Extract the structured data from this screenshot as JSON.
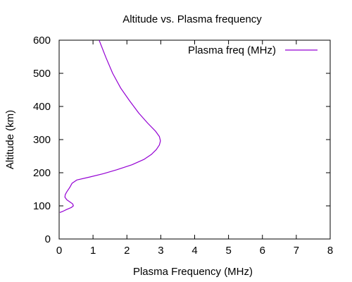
{
  "chart_data": {
    "type": "line",
    "title": "Altitude vs. Plasma frequency",
    "xlabel": "Plasma Frequency (MHz)",
    "ylabel": "Altitude (km)",
    "xlim": [
      0,
      8
    ],
    "ylim": [
      0,
      600
    ],
    "xticks": [
      0,
      1,
      2,
      3,
      4,
      5,
      6,
      7,
      8
    ],
    "yticks": [
      0,
      100,
      200,
      300,
      400,
      500,
      600
    ],
    "grid": false,
    "legend_position": "top-right",
    "series": [
      {
        "name": "Plasma freq (MHz)",
        "color": "#9400d3",
        "points": [
          [
            0.02,
            80
          ],
          [
            0.12,
            84
          ],
          [
            0.22,
            89
          ],
          [
            0.36,
            95
          ],
          [
            0.42,
            100
          ],
          [
            0.4,
            106
          ],
          [
            0.33,
            111
          ],
          [
            0.23,
            118
          ],
          [
            0.17,
            126
          ],
          [
            0.18,
            134
          ],
          [
            0.23,
            143
          ],
          [
            0.31,
            155
          ],
          [
            0.38,
            168
          ],
          [
            0.52,
            178
          ],
          [
            0.9,
            187
          ],
          [
            1.3,
            197
          ],
          [
            1.7,
            209
          ],
          [
            2.15,
            224
          ],
          [
            2.5,
            240
          ],
          [
            2.72,
            255
          ],
          [
            2.87,
            270
          ],
          [
            2.96,
            284
          ],
          [
            2.99,
            296
          ],
          [
            2.96,
            309
          ],
          [
            2.84,
            326
          ],
          [
            2.61,
            350
          ],
          [
            2.35,
            380
          ],
          [
            2.08,
            417
          ],
          [
            1.82,
            455
          ],
          [
            1.58,
            500
          ],
          [
            1.38,
            548
          ],
          [
            1.18,
            600
          ]
        ]
      }
    ]
  }
}
